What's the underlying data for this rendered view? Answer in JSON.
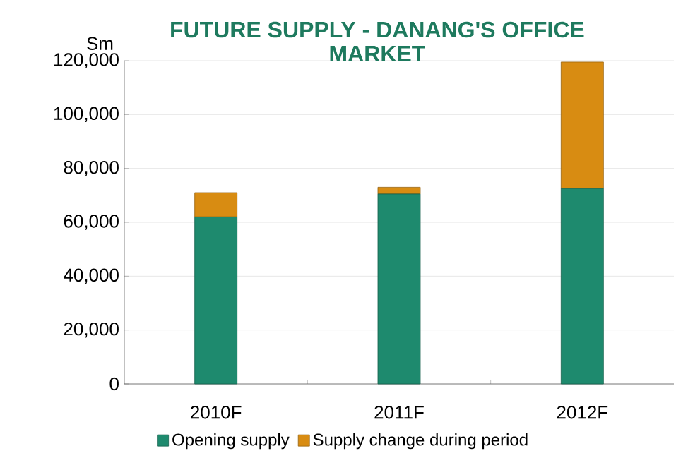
{
  "chart_data": {
    "type": "bar",
    "title": "FUTURE SUPPLY - DANANG'S OFFICE MARKET",
    "ylabel": "Sm",
    "categories": [
      "2010F",
      "2011F",
      "2012F"
    ],
    "stacked": true,
    "grid": "y",
    "legend": "bottom",
    "ylim": [
      0,
      120000
    ],
    "yticks": [
      {
        "value": 0,
        "label": "0"
      },
      {
        "value": 20000,
        "label": "20,000"
      },
      {
        "value": 40000,
        "label": "40,000"
      },
      {
        "value": 60000,
        "label": "60,000"
      },
      {
        "value": 80000,
        "label": "80,000"
      },
      {
        "value": 100000,
        "label": "100,000"
      },
      {
        "value": 120000,
        "label": "120,000"
      }
    ],
    "series": [
      {
        "name": "Opening supply",
        "color": "#1e8a6e",
        "values": [
          62000,
          70500,
          72500
        ]
      },
      {
        "name": "Supply change during period",
        "color": "#d88c12",
        "values": [
          9000,
          2500,
          47000
        ]
      }
    ]
  }
}
